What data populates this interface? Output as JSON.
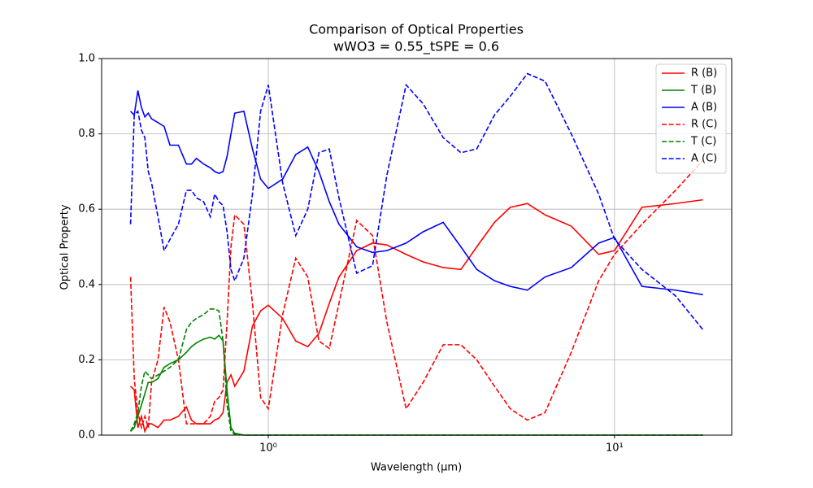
{
  "chart_data": {
    "type": "line",
    "title": "Comparison of Optical Properties",
    "subtitle": "wWO3 = 0.55_tSPE = 0.6",
    "x_label": "Wavelength (μm)",
    "y_label": "Optical Property",
    "x_scale": "log",
    "grid": true,
    "legend": "upper right",
    "xlim": [
      0.33,
      21.8
    ],
    "ylim": [
      0,
      1
    ],
    "xticks": [
      {
        "value": 1,
        "label": "10⁰"
      },
      {
        "value": 10,
        "label": "10¹"
      }
    ],
    "yticks": [
      {
        "value": 0,
        "label": "0.0"
      },
      0.2,
      0.4,
      0.6,
      0.8,
      {
        "value": 1,
        "label": "1.0"
      }
    ],
    "x": [
      0.4,
      0.41,
      0.42,
      0.43,
      0.44,
      0.45,
      0.46,
      0.48,
      0.5,
      0.52,
      0.55,
      0.58,
      0.6,
      0.62,
      0.65,
      0.68,
      0.7,
      0.72,
      0.74,
      0.76,
      0.78,
      0.8,
      0.85,
      0.9,
      0.95,
      1.0,
      1.1,
      1.2,
      1.3,
      1.4,
      1.5,
      1.6,
      1.8,
      2.0,
      2.2,
      2.5,
      2.8,
      3.2,
      3.6,
      4.0,
      4.5,
      5.0,
      5.6,
      6.3,
      7.5,
      9.0,
      10,
      12,
      15,
      18
    ],
    "series": [
      {
        "name": "R (B)",
        "color": "#ff0000",
        "linestyle": "solid",
        "values": [
          0.13,
          0.12,
          0.02,
          0.05,
          0.01,
          0.03,
          0.03,
          0.02,
          0.04,
          0.04,
          0.05,
          0.075,
          0.04,
          0.03,
          0.03,
          0.03,
          0.04,
          0.045,
          0.06,
          0.14,
          0.16,
          0.13,
          0.17,
          0.29,
          0.33,
          0.345,
          0.31,
          0.25,
          0.235,
          0.27,
          0.35,
          0.42,
          0.49,
          0.51,
          0.505,
          0.48,
          0.46,
          0.445,
          0.44,
          0.5,
          0.565,
          0.605,
          0.615,
          0.585,
          0.555,
          0.48,
          0.49,
          0.605,
          0.615,
          0.625
        ]
      },
      {
        "name": "T (B)",
        "color": "#008000",
        "linestyle": "solid",
        "values": [
          0.01,
          0.02,
          0.05,
          0.08,
          0.11,
          0.14,
          0.14,
          0.15,
          0.18,
          0.19,
          0.2,
          0.22,
          0.235,
          0.245,
          0.255,
          0.26,
          0.255,
          0.265,
          0.25,
          0.12,
          0.02,
          0.005,
          0,
          0,
          0,
          0,
          0,
          0,
          0,
          0,
          0,
          0,
          0,
          0,
          0,
          0,
          0,
          0,
          0,
          0,
          0,
          0,
          0,
          0,
          0,
          0,
          0,
          0,
          0,
          0
        ]
      },
      {
        "name": "A (B)",
        "color": "#0000ff",
        "linestyle": "solid",
        "values": [
          0.86,
          0.85,
          0.915,
          0.87,
          0.845,
          0.855,
          0.84,
          0.83,
          0.82,
          0.77,
          0.77,
          0.72,
          0.72,
          0.735,
          0.72,
          0.71,
          0.7,
          0.695,
          0.7,
          0.74,
          0.8,
          0.855,
          0.86,
          0.76,
          0.68,
          0.655,
          0.68,
          0.745,
          0.765,
          0.7,
          0.62,
          0.56,
          0.5,
          0.485,
          0.49,
          0.51,
          0.54,
          0.565,
          0.5,
          0.44,
          0.41,
          0.395,
          0.385,
          0.42,
          0.445,
          0.51,
          0.525,
          0.395,
          0.385,
          0.373
        ]
      },
      {
        "name": "R (C)",
        "color": "#ff0000",
        "linestyle": "dashed",
        "values": [
          0.42,
          0.15,
          0.06,
          0.02,
          0.05,
          0.02,
          0.14,
          0.2,
          0.34,
          0.3,
          0.2,
          0.03,
          0.03,
          0.03,
          0.03,
          0.05,
          0.09,
          0.1,
          0.12,
          0.3,
          0.5,
          0.585,
          0.56,
          0.35,
          0.1,
          0.07,
          0.32,
          0.47,
          0.42,
          0.25,
          0.23,
          0.35,
          0.57,
          0.53,
          0.3,
          0.07,
          0.14,
          0.24,
          0.24,
          0.2,
          0.13,
          0.07,
          0.04,
          0.06,
          0.22,
          0.41,
          0.48,
          0.56,
          0.65,
          0.73
        ]
      },
      {
        "name": "T (C)",
        "color": "#008000",
        "linestyle": "dashed",
        "values": [
          0.01,
          0.03,
          0.06,
          0.13,
          0.17,
          0.16,
          0.15,
          0.16,
          0.17,
          0.18,
          0.2,
          0.28,
          0.3,
          0.31,
          0.32,
          0.335,
          0.335,
          0.33,
          0.25,
          0.08,
          0.01,
          0.002,
          0,
          0,
          0,
          0,
          0,
          0,
          0,
          0,
          0,
          0,
          0,
          0,
          0,
          0,
          0,
          0,
          0,
          0,
          0,
          0,
          0,
          0,
          0,
          0,
          0,
          0,
          0,
          0
        ]
      },
      {
        "name": "A (C)",
        "color": "#0000ff",
        "linestyle": "dashed",
        "values": [
          0.56,
          0.85,
          0.86,
          0.81,
          0.79,
          0.7,
          0.67,
          0.58,
          0.49,
          0.52,
          0.56,
          0.65,
          0.65,
          0.63,
          0.62,
          0.58,
          0.64,
          0.62,
          0.61,
          0.54,
          0.44,
          0.41,
          0.47,
          0.64,
          0.86,
          0.93,
          0.67,
          0.53,
          0.6,
          0.75,
          0.76,
          0.63,
          0.43,
          0.45,
          0.69,
          0.93,
          0.88,
          0.79,
          0.75,
          0.76,
          0.85,
          0.9,
          0.96,
          0.94,
          0.8,
          0.64,
          0.52,
          0.44,
          0.37,
          0.28
        ]
      }
    ]
  }
}
